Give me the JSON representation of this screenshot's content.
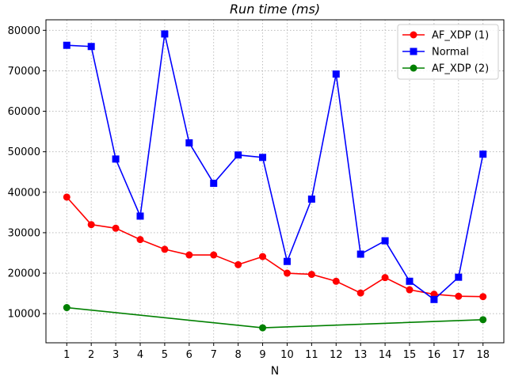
{
  "chart_data": {
    "type": "line",
    "title": "Run time (ms)",
    "xlabel": "N",
    "ylabel": "",
    "xlim": [
      0.15,
      18.85
    ],
    "ylim": [
      2800,
      82600
    ],
    "xticks": [
      1,
      2,
      3,
      4,
      5,
      6,
      7,
      8,
      9,
      10,
      11,
      12,
      13,
      14,
      15,
      16,
      17,
      18
    ],
    "yticks": [
      10000,
      20000,
      30000,
      40000,
      50000,
      60000,
      70000,
      80000
    ],
    "grid": true,
    "legend": "top-right",
    "series": [
      {
        "name": "AF_XDP (1)",
        "color": "#ff0000",
        "marker": "circle",
        "x": [
          1,
          2,
          3,
          4,
          5,
          6,
          7,
          8,
          9,
          10,
          11,
          12,
          13,
          14,
          15,
          16,
          17,
          18
        ],
        "y": [
          38800,
          32000,
          31100,
          28300,
          25900,
          24500,
          24500,
          22100,
          24100,
          20000,
          19700,
          18000,
          15100,
          18900,
          15900,
          14800,
          14300,
          14200
        ]
      },
      {
        "name": "Normal",
        "color": "#0000ff",
        "marker": "square",
        "x": [
          1,
          2,
          3,
          4,
          5,
          6,
          7,
          8,
          9,
          10,
          11,
          12,
          13,
          14,
          15,
          16,
          17,
          18
        ],
        "y": [
          76300,
          76000,
          48200,
          34100,
          79100,
          52200,
          42200,
          49200,
          48600,
          22900,
          38300,
          69200,
          24700,
          28000,
          18000,
          13500,
          19000,
          49400
        ]
      },
      {
        "name": "AF_XDP (2)",
        "color": "#008000",
        "marker": "circle",
        "x": [
          1,
          9,
          18
        ],
        "y": [
          11500,
          6500,
          8500
        ]
      }
    ]
  }
}
